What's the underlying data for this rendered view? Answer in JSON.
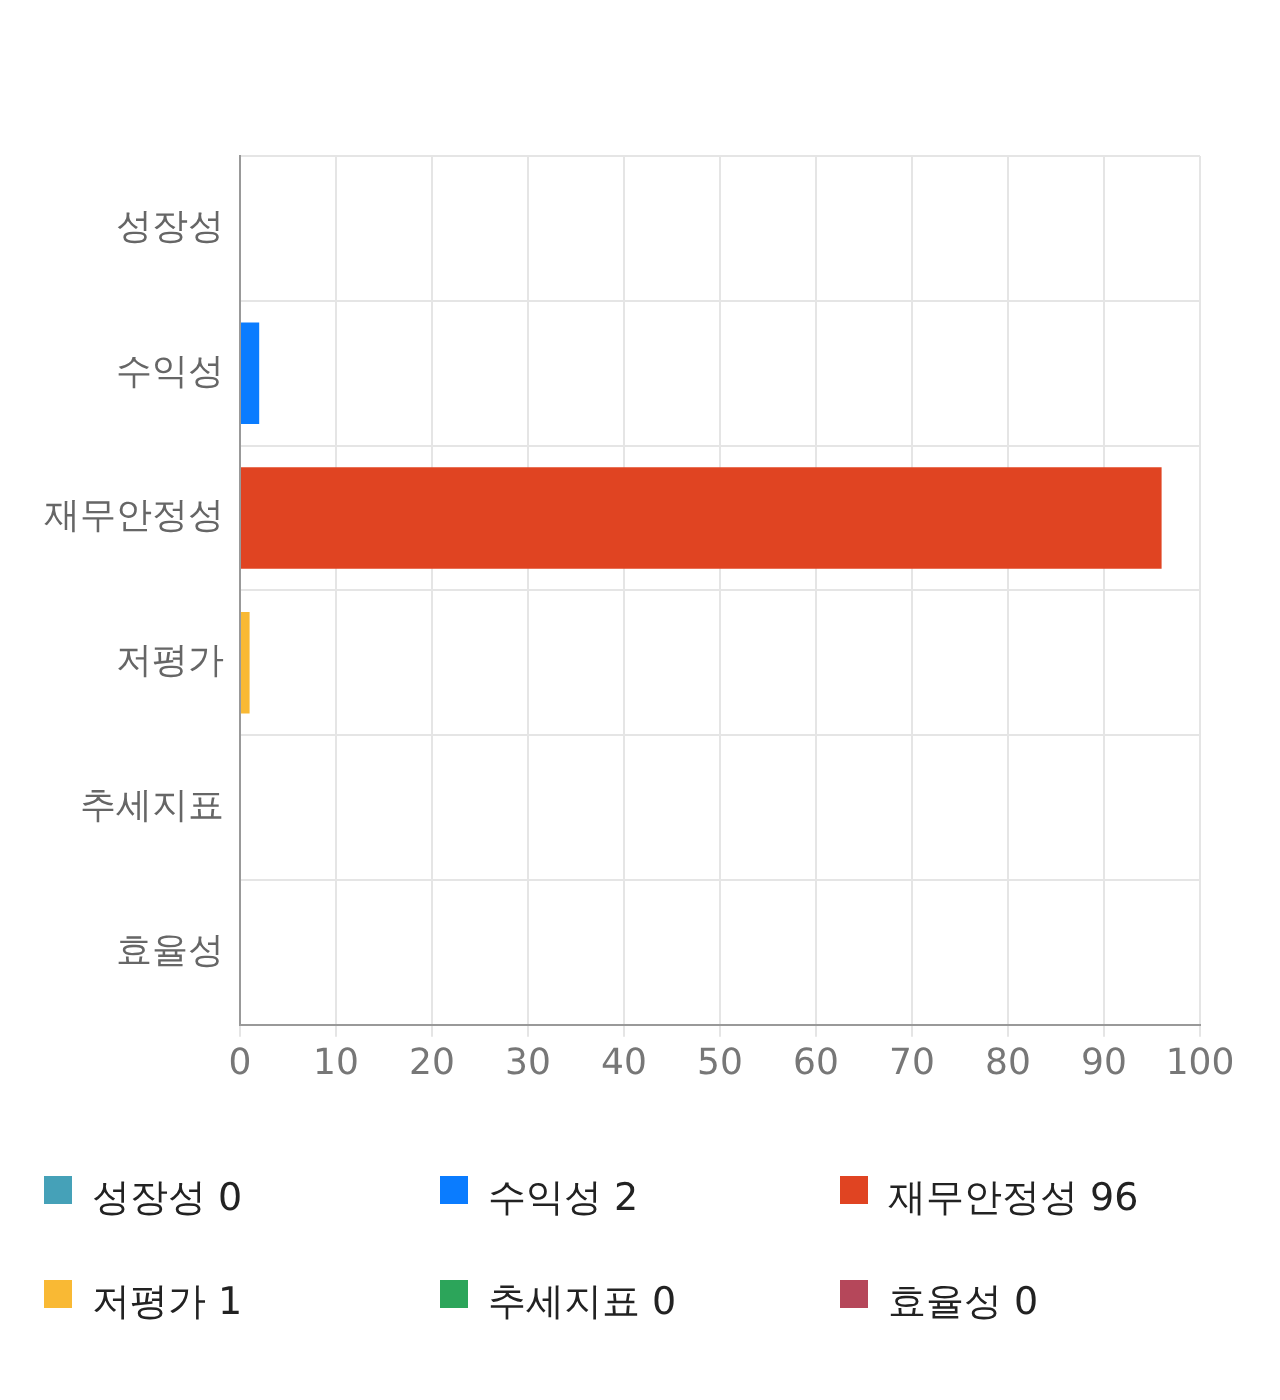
{
  "chart_data": {
    "type": "bar",
    "orientation": "horizontal",
    "categories": [
      "성장성",
      "수익성",
      "재무안정성",
      "저평가",
      "추세지표",
      "효율성"
    ],
    "values": [
      0,
      2,
      96,
      1,
      0,
      0
    ],
    "colors": [
      "#45a1b8",
      "#0a7cff",
      "#e04422",
      "#f9b934",
      "#2ca55a",
      "#b5475a"
    ],
    "xlim": [
      0,
      100
    ],
    "xticks": [
      0,
      10,
      20,
      30,
      40,
      50,
      60,
      70,
      80,
      90,
      100
    ],
    "value_labels": [
      "0",
      "2",
      "96",
      "1",
      "0",
      "0"
    ],
    "grid": true
  }
}
